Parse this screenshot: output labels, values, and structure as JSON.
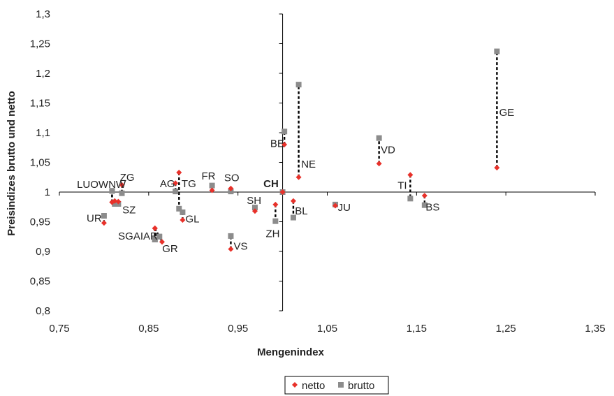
{
  "chart_data": {
    "type": "scatter",
    "xlabel": "Mengenindex",
    "ylabel": "Preisindizes brutto und netto",
    "xlim": [
      0.75,
      1.35
    ],
    "ylim": [
      0.8,
      1.3
    ],
    "x_ticks": [
      "0,75",
      "0,85",
      "0,95",
      "1,05",
      "1,15",
      "1,25",
      "1,35"
    ],
    "y_ticks": [
      "0,8",
      "0,85",
      "0,9",
      "0,95",
      "1",
      "1,05",
      "1,1",
      "1,15",
      "1,2",
      "1,25",
      "1,3"
    ],
    "crosshair": {
      "x": 1.0,
      "y": 1.0
    },
    "legend": {
      "position": "bottom",
      "entries": [
        "netto",
        "brutto"
      ]
    },
    "colors": {
      "netto": "#e8312a",
      "brutto": "#8c8c8c",
      "axis": "#000000"
    },
    "series": [
      {
        "name": "netto",
        "marker": "diamond",
        "points": [
          {
            "label": "LU",
            "x": 0.809,
            "y": 0.983
          },
          {
            "label": "OW",
            "x": 0.812,
            "y": 0.985
          },
          {
            "label": "NW",
            "x": 0.809,
            "y": 0.983
          },
          {
            "label": "ZG",
            "x": 0.82,
            "y": 1.012
          },
          {
            "label": "SZ",
            "x": 0.816,
            "y": 0.984
          },
          {
            "label": "UR",
            "x": 0.8,
            "y": 0.948
          },
          {
            "label": "SG",
            "x": 0.857,
            "y": 0.939
          },
          {
            "label": "AI",
            "x": 0.857,
            "y": 0.939
          },
          {
            "label": "AR",
            "x": 0.857,
            "y": 0.939
          },
          {
            "label": "GR",
            "x": 0.865,
            "y": 0.916
          },
          {
            "label": "AG",
            "x": 0.88,
            "y": 1.015
          },
          {
            "label": "TG",
            "x": 0.884,
            "y": 1.033
          },
          {
            "label": "GL",
            "x": 0.888,
            "y": 0.953
          },
          {
            "label": "FR",
            "x": 0.921,
            "y": 1.003
          },
          {
            "label": "SO",
            "x": 0.942,
            "y": 1.006
          },
          {
            "label": "VS",
            "x": 0.942,
            "y": 0.904
          },
          {
            "label": "SH",
            "x": 0.969,
            "y": 0.968
          },
          {
            "label": "ZH",
            "x": 0.992,
            "y": 0.979
          },
          {
            "label": "CH",
            "x": 1.0,
            "y": 1.0
          },
          {
            "label": "BE",
            "x": 1.002,
            "y": 1.08
          },
          {
            "label": "NE",
            "x": 1.018,
            "y": 1.025
          },
          {
            "label": "BL",
            "x": 1.012,
            "y": 0.985
          },
          {
            "label": "JU",
            "x": 1.059,
            "y": 0.977
          },
          {
            "label": "VD",
            "x": 1.108,
            "y": 1.048
          },
          {
            "label": "TI",
            "x": 1.143,
            "y": 1.029
          },
          {
            "label": "BS",
            "x": 1.159,
            "y": 0.994
          },
          {
            "label": "GE",
            "x": 1.24,
            "y": 1.041
          }
        ]
      },
      {
        "name": "brutto",
        "marker": "square",
        "points": [
          {
            "label": "LU",
            "x": 0.809,
            "y": 1.002
          },
          {
            "label": "OW",
            "x": 0.812,
            "y": 0.98
          },
          {
            "label": "NW",
            "x": 0.809,
            "y": 1.002
          },
          {
            "label": "ZG",
            "x": 0.82,
            "y": 0.998
          },
          {
            "label": "SZ",
            "x": 0.816,
            "y": 0.98
          },
          {
            "label": "UR",
            "x": 0.8,
            "y": 0.96
          },
          {
            "label": "SG",
            "x": 0.857,
            "y": 0.92
          },
          {
            "label": "AI",
            "x": 0.862,
            "y": 0.925
          },
          {
            "label": "AR",
            "x": 0.857,
            "y": 0.92
          },
          {
            "label": "GR",
            "x": 0.862,
            "y": 0.925
          },
          {
            "label": "AG",
            "x": 0.88,
            "y": 1.001
          },
          {
            "label": "TG",
            "x": 0.884,
            "y": 0.972
          },
          {
            "label": "GL",
            "x": 0.888,
            "y": 0.966
          },
          {
            "label": "FR",
            "x": 0.921,
            "y": 1.011
          },
          {
            "label": "SO",
            "x": 0.942,
            "y": 1.001
          },
          {
            "label": "VS",
            "x": 0.942,
            "y": 0.926
          },
          {
            "label": "SH",
            "x": 0.969,
            "y": 0.974
          },
          {
            "label": "ZH",
            "x": 0.992,
            "y": 0.951
          },
          {
            "label": "CH",
            "x": 1.0,
            "y": 1.0
          },
          {
            "label": "BE",
            "x": 1.002,
            "y": 1.102
          },
          {
            "label": "NE",
            "x": 1.018,
            "y": 1.181
          },
          {
            "label": "BL",
            "x": 1.012,
            "y": 0.957
          },
          {
            "label": "JU",
            "x": 1.059,
            "y": 0.979
          },
          {
            "label": "VD",
            "x": 1.108,
            "y": 1.091
          },
          {
            "label": "TI",
            "x": 1.143,
            "y": 0.989
          },
          {
            "label": "BS",
            "x": 1.159,
            "y": 0.978
          },
          {
            "label": "GE",
            "x": 1.24,
            "y": 1.237
          }
        ]
      }
    ],
    "point_labels": [
      {
        "text": "LUOWNW",
        "x": 0.797,
        "y": 1.013,
        "anchor": "middle",
        "bold": false
      },
      {
        "text": "ZG",
        "x": 0.826,
        "y": 1.025,
        "anchor": "middle",
        "bold": false
      },
      {
        "text": "SZ",
        "x": 0.828,
        "y": 0.97,
        "anchor": "middle",
        "bold": false
      },
      {
        "text": "UR",
        "x": 0.789,
        "y": 0.956,
        "anchor": "middle",
        "bold": false
      },
      {
        "text": "SGAIAR",
        "x": 0.838,
        "y": 0.926,
        "anchor": "middle",
        "bold": false
      },
      {
        "text": "GR",
        "x": 0.874,
        "y": 0.905,
        "anchor": "middle",
        "bold": false
      },
      {
        "text": "AG",
        "x": 0.871,
        "y": 1.014,
        "anchor": "middle",
        "bold": false
      },
      {
        "text": "TG",
        "x": 0.895,
        "y": 1.014,
        "anchor": "middle",
        "bold": false
      },
      {
        "text": "GL",
        "x": 0.899,
        "y": 0.955,
        "anchor": "middle",
        "bold": false
      },
      {
        "text": "FR",
        "x": 0.917,
        "y": 1.027,
        "anchor": "middle",
        "bold": false
      },
      {
        "text": "SO",
        "x": 0.943,
        "y": 1.024,
        "anchor": "middle",
        "bold": false
      },
      {
        "text": "VS",
        "x": 0.953,
        "y": 0.909,
        "anchor": "middle",
        "bold": false
      },
      {
        "text": "SH",
        "x": 0.968,
        "y": 0.986,
        "anchor": "middle",
        "bold": false
      },
      {
        "text": "ZH",
        "x": 0.989,
        "y": 0.93,
        "anchor": "middle",
        "bold": false
      },
      {
        "text": "CH",
        "x": 0.987,
        "y": 1.014,
        "anchor": "middle",
        "bold": true
      },
      {
        "text": "BE",
        "x": 0.994,
        "y": 1.082,
        "anchor": "middle",
        "bold": false
      },
      {
        "text": "NE",
        "x": 1.029,
        "y": 1.047,
        "anchor": "middle",
        "bold": false
      },
      {
        "text": "BL",
        "x": 1.021,
        "y": 0.968,
        "anchor": "middle",
        "bold": false
      },
      {
        "text": "JU",
        "x": 1.069,
        "y": 0.974,
        "anchor": "middle",
        "bold": false
      },
      {
        "text": "VD",
        "x": 1.118,
        "y": 1.071,
        "anchor": "middle",
        "bold": false
      },
      {
        "text": "TI",
        "x": 1.134,
        "y": 1.011,
        "anchor": "middle",
        "bold": false
      },
      {
        "text": "BS",
        "x": 1.168,
        "y": 0.975,
        "anchor": "middle",
        "bold": false
      },
      {
        "text": "GE",
        "x": 1.251,
        "y": 1.134,
        "anchor": "middle",
        "bold": false
      }
    ]
  }
}
